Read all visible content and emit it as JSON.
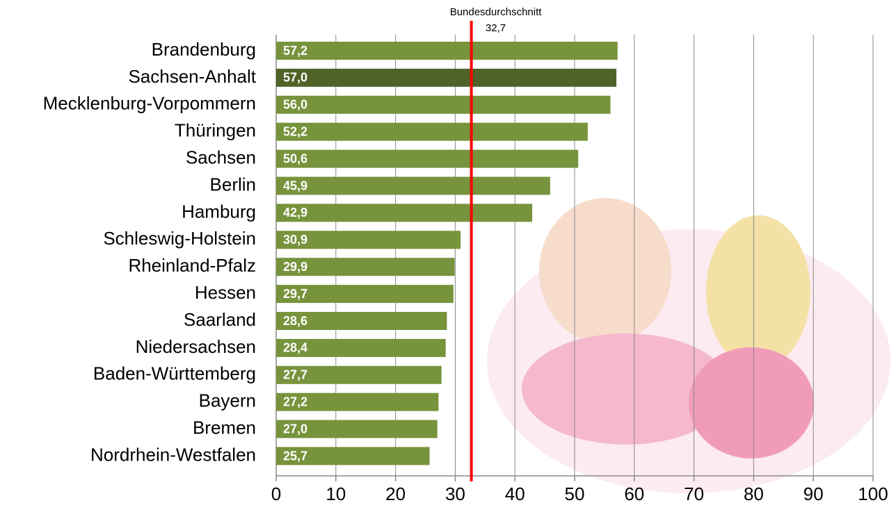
{
  "chart_data": {
    "type": "barh",
    "categories": [
      "Brandenburg",
      "Sachsen-Anhalt",
      "Mecklenburg-Vorpommern",
      "Thüringen",
      "Sachsen",
      "Berlin",
      "Hamburg",
      "Schleswig-Holstein",
      "Rheinland-Pfalz",
      "Hessen",
      "Saarland",
      "Niedersachsen",
      "Baden-Württemberg",
      "Bayern",
      "Bremen",
      "Nordrhein-Westfalen"
    ],
    "values": [
      57.2,
      57.0,
      56.0,
      52.2,
      50.6,
      45.9,
      42.9,
      30.9,
      29.9,
      29.7,
      28.6,
      28.4,
      27.7,
      27.2,
      27.0,
      25.7
    ],
    "value_labels": [
      "57,2",
      "57,0",
      "56,0",
      "52,2",
      "50,6",
      "45,9",
      "42,9",
      "30,9",
      "29,9",
      "29,7",
      "28,6",
      "28,4",
      "27,7",
      "27,2",
      "27,0",
      "25,7"
    ],
    "colors": [
      "#77933c",
      "#4f6228",
      "#77933c",
      "#77933c",
      "#77933c",
      "#77933c",
      "#77933c",
      "#77933c",
      "#77933c",
      "#77933c",
      "#77933c",
      "#77933c",
      "#77933c",
      "#77933c",
      "#77933c",
      "#77933c"
    ],
    "xlim": [
      0,
      100
    ],
    "xticks": [
      0,
      10,
      20,
      30,
      40,
      50,
      60,
      70,
      80,
      90,
      100
    ],
    "grid": true,
    "reference_line": {
      "label": "Bundesdurchschnitt",
      "value": 32.7,
      "value_label": "32,7",
      "color": "#ff0000"
    }
  }
}
